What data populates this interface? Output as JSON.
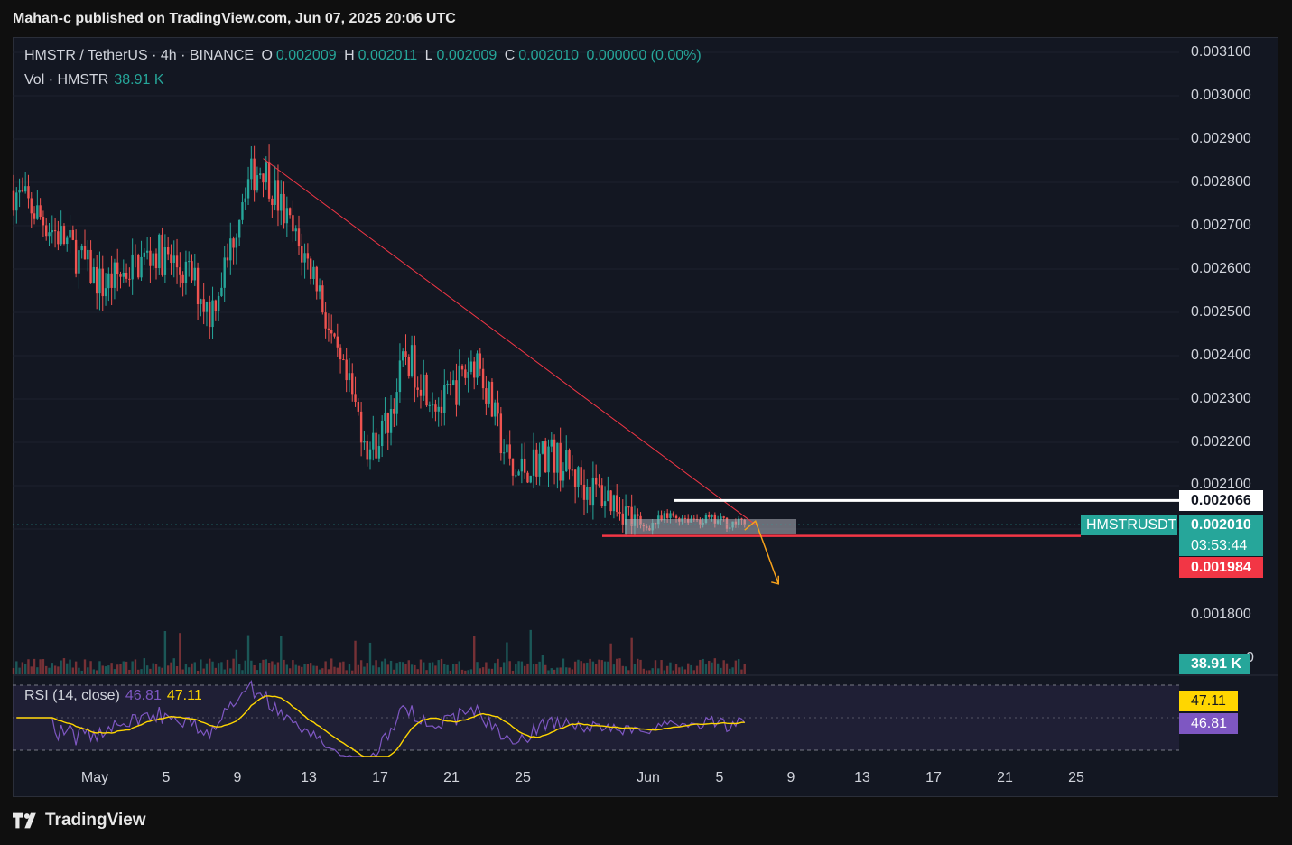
{
  "header": {
    "publisher_line": "Mahan-c published on TradingView.com, Jun 07, 2025 20:06 UTC"
  },
  "legend": {
    "symbol_line": "HMSTR / TetherUS · 4h · BINANCE",
    "o_label": "O",
    "o_value": "0.002009",
    "h_label": "H",
    "h_value": "0.002011",
    "l_label": "L",
    "l_value": "0.002009",
    "c_label": "C",
    "c_value": "0.002010",
    "change": "0.000000 (0.00%)"
  },
  "volume_legend": {
    "label": "Vol · HMSTR",
    "value": "38.91 K"
  },
  "rsi_legend": {
    "label": "RSI (14, close)",
    "rsi_value": "46.81",
    "ma_value": "47.11"
  },
  "price_axis": [
    "0.003100",
    "0.003000",
    "0.002900",
    "0.002800",
    "0.002700",
    "0.002600",
    "0.002500",
    "0.002400",
    "0.002300",
    "0.002200",
    "0.002100",
    "0.001800",
    "0"
  ],
  "badges": {
    "resistance": "0.002066",
    "symbol": "HMSTRUSDT",
    "last_price": "0.002010",
    "countdown": "03:53:44",
    "support": "0.001984",
    "volume": "38.91 K",
    "rsi_ma": "47.11",
    "rsi": "46.81"
  },
  "date_axis": [
    "May",
    "5",
    "9",
    "13",
    "17",
    "21",
    "25",
    "Jun",
    "5",
    "9",
    "13",
    "17",
    "21",
    "25"
  ],
  "footer": {
    "brand": "TradingView"
  },
  "colors": {
    "up": "#26a69a",
    "down": "#ef5350",
    "resistance": "#ffffff",
    "support": "#f23645",
    "trendline": "#f23645",
    "projection": "#f7a21b",
    "rsi": "#7e57c2",
    "rsi_ma": "#ffd600"
  },
  "chart_data": {
    "type": "candlestick",
    "interval": "4h",
    "x_range": [
      "2025-04-27",
      "2025-06-25"
    ],
    "y_range": [
      0.00175,
      0.00312
    ],
    "close_path": [
      {
        "date": "2025-04-27",
        "price": 0.00278
      },
      {
        "date": "2025-04-30",
        "price": 0.00266
      },
      {
        "date": "2025-05-02",
        "price": 0.00256
      },
      {
        "date": "2025-05-05",
        "price": 0.00264
      },
      {
        "date": "2025-05-07",
        "price": 0.00258
      },
      {
        "date": "2025-05-08",
        "price": 0.0025
      },
      {
        "date": "2025-05-09",
        "price": 0.00262
      },
      {
        "date": "2025-05-10",
        "price": 0.0028
      },
      {
        "date": "2025-05-11",
        "price": 0.00284
      },
      {
        "date": "2025-05-12",
        "price": 0.00274
      },
      {
        "date": "2025-05-13",
        "price": 0.00265
      },
      {
        "date": "2025-05-14",
        "price": 0.00258
      },
      {
        "date": "2025-05-15",
        "price": 0.0024
      },
      {
        "date": "2025-05-16",
        "price": 0.0023
      },
      {
        "date": "2025-05-17",
        "price": 0.00218
      },
      {
        "date": "2025-05-18",
        "price": 0.00225
      },
      {
        "date": "2025-05-19",
        "price": 0.0024
      },
      {
        "date": "2025-05-21",
        "price": 0.00228
      },
      {
        "date": "2025-05-23",
        "price": 0.0024
      },
      {
        "date": "2025-05-24",
        "price": 0.00225
      },
      {
        "date": "2025-05-25",
        "price": 0.00212
      },
      {
        "date": "2025-05-27",
        "price": 0.00218
      },
      {
        "date": "2025-05-29",
        "price": 0.0021
      },
      {
        "date": "2025-05-31",
        "price": 0.00206
      },
      {
        "date": "2025-06-01",
        "price": 0.002
      },
      {
        "date": "2025-06-03",
        "price": 0.00203
      },
      {
        "date": "2025-06-05",
        "price": 0.00202
      },
      {
        "date": "2025-06-07",
        "price": 0.00201
      }
    ],
    "volume_last": "38.91 K",
    "rsi_last": 46.81,
    "rsi_ma_last": 47.11,
    "resistance_level": 0.002066,
    "support_level": 0.001984,
    "trendline": {
      "from": {
        "date": "2025-05-11",
        "price": 0.002855
      },
      "to": {
        "date": "2025-06-07",
        "price": 0.00201
      }
    },
    "projection": {
      "from": {
        "date": "2025-06-07",
        "price": 0.00201
      },
      "to": {
        "date": "2025-06-09",
        "price": 0.00189
      }
    },
    "rsi_range": [
      0,
      100
    ],
    "rsi_bands": [
      70,
      30
    ]
  }
}
